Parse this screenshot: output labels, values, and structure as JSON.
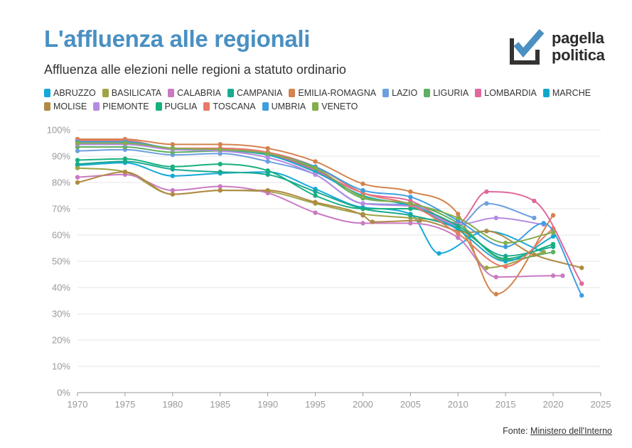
{
  "header": {
    "title": "L'affluenza alle regionali",
    "subtitle": "Affluenza alle elezioni nelle regioni a statuto ordinario"
  },
  "logo": {
    "line1": "pagella",
    "line2": "politica",
    "accent": "#4a90c2",
    "mark_color": "#333333"
  },
  "source": {
    "prefix": "Fonte: ",
    "link_text": "Ministero dell'Interno"
  },
  "chart_data": {
    "type": "line",
    "xlim": [
      1970,
      2025
    ],
    "ylim": [
      0,
      100
    ],
    "x_ticks": [
      "1970",
      "1975",
      "1980",
      "1985",
      "1990",
      "1995",
      "2000",
      "2005",
      "2010",
      "2015",
      "2020",
      "2025"
    ],
    "y_ticks": [
      "0%",
      "10%",
      "20%",
      "30%",
      "40%",
      "50%",
      "60%",
      "70%",
      "80%",
      "90%",
      "100%"
    ],
    "grid": true,
    "legend_position": "top",
    "series": [
      {
        "name": "ABRUZZO",
        "color": "#14a9d8",
        "points": [
          [
            1970,
            86.5
          ],
          [
            1975,
            87.5
          ],
          [
            1980,
            82.5
          ],
          [
            1985,
            83.5
          ],
          [
            1990,
            84
          ],
          [
            1995,
            77.5
          ],
          [
            2000,
            70.5
          ],
          [
            2005,
            68
          ],
          [
            2008,
            53
          ],
          [
            2013,
            61.5
          ],
          [
            2019,
            53.5
          ]
        ]
      },
      {
        "name": "BASILICATA",
        "color": "#9ea445",
        "points": [
          [
            1970,
            85.5
          ],
          [
            1975,
            84
          ],
          [
            1980,
            75.5
          ],
          [
            1985,
            77
          ],
          [
            1990,
            76.5
          ],
          [
            1995,
            72
          ],
          [
            2000,
            68
          ],
          [
            2005,
            66.5
          ],
          [
            2010,
            63
          ],
          [
            2013,
            47.5
          ],
          [
            2019,
            53.5
          ]
        ]
      },
      {
        "name": "CALABRIA",
        "color": "#c97ac3",
        "points": [
          [
            1970,
            82
          ],
          [
            1975,
            83
          ],
          [
            1980,
            77
          ],
          [
            1985,
            78.5
          ],
          [
            1990,
            76
          ],
          [
            1995,
            68.5
          ],
          [
            2000,
            64.5
          ],
          [
            2005,
            64.5
          ],
          [
            2010,
            59
          ],
          [
            2014,
            44
          ],
          [
            2020,
            44.5
          ],
          [
            2021,
            44.5
          ]
        ]
      },
      {
        "name": "CAMPANIA",
        "color": "#1aaa8f",
        "points": [
          [
            1970,
            87
          ],
          [
            1975,
            88
          ],
          [
            1980,
            85
          ],
          [
            1985,
            84
          ],
          [
            1990,
            83
          ],
          [
            1995,
            76.5
          ],
          [
            2000,
            70
          ],
          [
            2005,
            67.5
          ],
          [
            2010,
            62.5
          ],
          [
            2015,
            52
          ],
          [
            2020,
            55.5
          ]
        ]
      },
      {
        "name": "EMILIA-ROMAGNA",
        "color": "#d4834e",
        "points": [
          [
            1970,
            96.5
          ],
          [
            1975,
            96.5
          ],
          [
            1980,
            94.5
          ],
          [
            1985,
            94.5
          ],
          [
            1990,
            93
          ],
          [
            1995,
            88
          ],
          [
            2000,
            79.5
          ],
          [
            2005,
            76.5
          ],
          [
            2010,
            68
          ],
          [
            2014,
            37.5
          ],
          [
            2020,
            67.5
          ]
        ]
      },
      {
        "name": "LAZIO",
        "color": "#6d9fe0",
        "points": [
          [
            1970,
            92
          ],
          [
            1975,
            92.5
          ],
          [
            1980,
            90.5
          ],
          [
            1985,
            91
          ],
          [
            1990,
            88
          ],
          [
            1995,
            83
          ],
          [
            2000,
            72
          ],
          [
            2005,
            71.5
          ],
          [
            2010,
            63.5
          ],
          [
            2013,
            72
          ],
          [
            2018,
            66.5
          ]
        ]
      },
      {
        "name": "LIGURIA",
        "color": "#5fae63",
        "points": [
          [
            1970,
            93.5
          ],
          [
            1975,
            93.5
          ],
          [
            1980,
            91.5
          ],
          [
            1985,
            92
          ],
          [
            1990,
            90.5
          ],
          [
            1995,
            85
          ],
          [
            2000,
            74
          ],
          [
            2005,
            72
          ],
          [
            2010,
            64.5
          ],
          [
            2015,
            50.5
          ],
          [
            2020,
            53.5
          ]
        ]
      },
      {
        "name": "LOMBARDIA",
        "color": "#e0689c",
        "points": [
          [
            1970,
            95.5
          ],
          [
            1975,
            95.5
          ],
          [
            1980,
            93
          ],
          [
            1985,
            93
          ],
          [
            1990,
            91
          ],
          [
            1995,
            84.5
          ],
          [
            2000,
            76
          ],
          [
            2005,
            73
          ],
          [
            2010,
            64.5
          ],
          [
            2013,
            76.5
          ],
          [
            2018,
            73
          ],
          [
            2023,
            41.5
          ]
        ]
      },
      {
        "name": "MARCHE",
        "color": "#11a9ca",
        "points": [
          [
            1970,
            94.5
          ],
          [
            1975,
            94.5
          ],
          [
            1980,
            93
          ],
          [
            1985,
            92.5
          ],
          [
            1990,
            90.5
          ],
          [
            1995,
            84
          ],
          [
            2000,
            75
          ],
          [
            2005,
            71
          ],
          [
            2010,
            62
          ],
          [
            2015,
            50
          ],
          [
            2020,
            59.5
          ]
        ]
      },
      {
        "name": "MOLISE",
        "color": "#b08a44",
        "points": [
          [
            1970,
            80
          ],
          [
            1975,
            84
          ],
          [
            1980,
            75.5
          ],
          [
            1985,
            77
          ],
          [
            1990,
            77
          ],
          [
            1995,
            72.5
          ],
          [
            2000,
            67.5
          ],
          [
            2001,
            65
          ],
          [
            2006,
            65.5
          ],
          [
            2011,
            61
          ],
          [
            2013,
            61.5
          ],
          [
            2018,
            52.5
          ],
          [
            2023,
            47.5
          ]
        ]
      },
      {
        "name": "PIEMONTE",
        "color": "#b58be2",
        "points": [
          [
            1970,
            94.5
          ],
          [
            1975,
            94.5
          ],
          [
            1980,
            92.5
          ],
          [
            1985,
            92
          ],
          [
            1990,
            89.5
          ],
          [
            1995,
            83
          ],
          [
            2000,
            72
          ],
          [
            2005,
            71
          ],
          [
            2010,
            64
          ],
          [
            2014,
            66.5
          ],
          [
            2019,
            64
          ]
        ]
      },
      {
        "name": "PUGLIA",
        "color": "#17b07f",
        "points": [
          [
            1970,
            88.5
          ],
          [
            1975,
            89
          ],
          [
            1980,
            86
          ],
          [
            1985,
            87
          ],
          [
            1990,
            84.5
          ],
          [
            1995,
            75
          ],
          [
            2000,
            70
          ],
          [
            2005,
            70
          ],
          [
            2010,
            63.5
          ],
          [
            2015,
            51
          ],
          [
            2020,
            56.5
          ]
        ]
      },
      {
        "name": "TOSCANA",
        "color": "#e87966",
        "points": [
          [
            1970,
            96
          ],
          [
            1975,
            96
          ],
          [
            1980,
            93
          ],
          [
            1985,
            93
          ],
          [
            1990,
            91.5
          ],
          [
            1995,
            86
          ],
          [
            2000,
            76
          ],
          [
            2005,
            71.5
          ],
          [
            2010,
            60.5
          ],
          [
            2015,
            48
          ],
          [
            2020,
            62.5
          ]
        ]
      },
      {
        "name": "UMBRIA",
        "color": "#3e9ee0",
        "points": [
          [
            1970,
            95.5
          ],
          [
            1975,
            95.5
          ],
          [
            1980,
            93
          ],
          [
            1985,
            92.5
          ],
          [
            1990,
            91
          ],
          [
            1995,
            86
          ],
          [
            2000,
            77
          ],
          [
            2005,
            74.5
          ],
          [
            2010,
            65.5
          ],
          [
            2015,
            55.5
          ],
          [
            2019,
            64.5
          ],
          [
            2023,
            37
          ]
        ]
      },
      {
        "name": "VENETO",
        "color": "#84ae4c",
        "points": [
          [
            1970,
            95
          ],
          [
            1975,
            95
          ],
          [
            1980,
            93
          ],
          [
            1985,
            92.5
          ],
          [
            1990,
            91
          ],
          [
            1995,
            85.5
          ],
          [
            2000,
            74.5
          ],
          [
            2005,
            72
          ],
          [
            2010,
            66.5
          ],
          [
            2015,
            57
          ],
          [
            2020,
            61
          ]
        ]
      }
    ]
  }
}
